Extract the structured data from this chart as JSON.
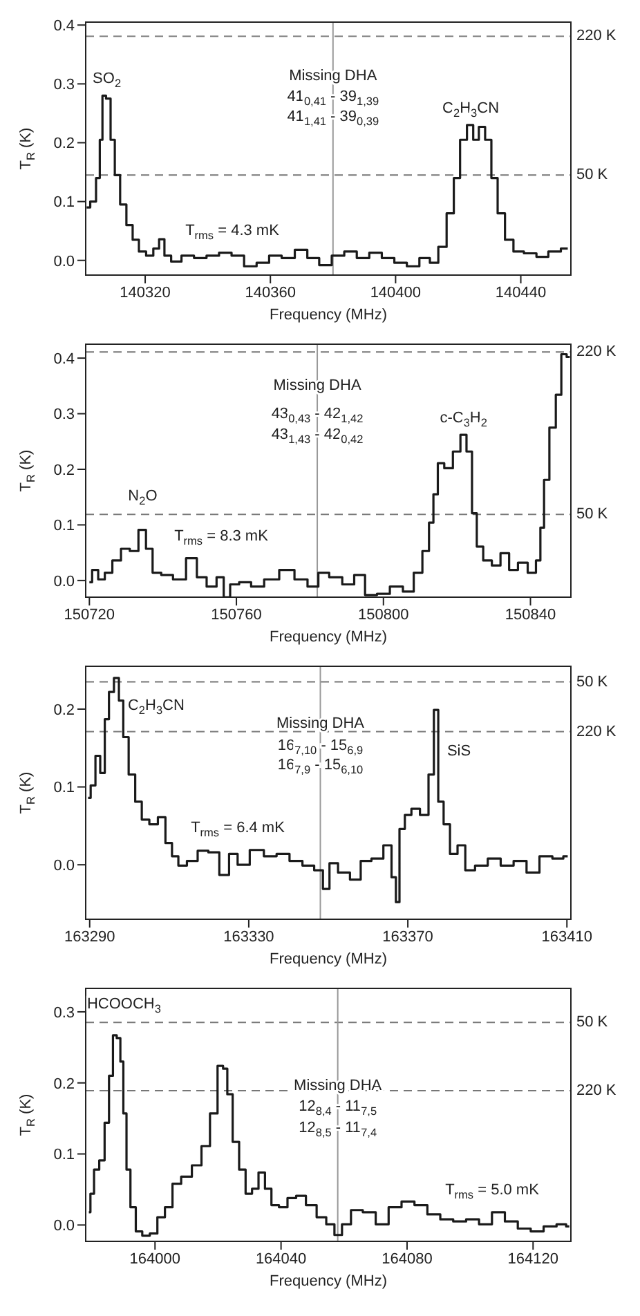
{
  "chart_data": [
    {
      "type": "step",
      "xlabel": "Frequency (MHz)",
      "ylabel": "T$_{R}$ (K)",
      "color": "#1a1a1a",
      "marker": "none",
      "xlim": [
        140301,
        140456
      ],
      "ylim": [
        -0.025,
        0.405
      ],
      "xticks": [
        140320,
        140360,
        140400,
        140440
      ],
      "yticks": [
        {
          "value": 0,
          "label": "0.0"
        },
        {
          "value": 0.1,
          "label": "0.1"
        },
        {
          "value": 0.2,
          "label": "0.2"
        },
        {
          "value": 0.3,
          "label": "0.3"
        },
        {
          "value": 0.4,
          "label": "0.4"
        }
      ],
      "x": [
        140301.3,
        140303.6,
        140305,
        140306,
        140306.7,
        140308.3,
        140309.6,
        140311,
        140313,
        140315,
        140317,
        140319,
        140321.6,
        140323.6,
        140325.3,
        140327,
        140329.6,
        140333.6,
        140337.6,
        140341.6,
        140345.6,
        140349.6,
        140353.6,
        140357.6,
        140361.6,
        140365.6,
        140370,
        140373.6,
        140377.6,
        140381.6,
        140385.6,
        140389.6,
        140393.6,
        140397.6,
        140401.6,
        140405.6,
        140409.6,
        140412.3,
        140415,
        140417.6,
        140419.6,
        140421.6,
        140424,
        140425.6,
        140427.6,
        140429.6,
        140431.6,
        140433.6,
        140436.3,
        140439,
        140443,
        140447,
        140450.6,
        140455
      ],
      "values": [
        0.09,
        0.1,
        0.14,
        0.205,
        0.28,
        0.275,
        0.205,
        0.145,
        0.095,
        0.06,
        0.035,
        0.015,
        0.008,
        0.02,
        0.036,
        0.008,
        -0.002,
        0.008,
        0.004,
        0.008,
        0.013,
        0.008,
        -0.01,
        -0.004,
        0.008,
        0.004,
        0.018,
        0.004,
        -0.008,
        0.008,
        0.015,
        0.004,
        0.013,
        0.004,
        -0.004,
        -0.01,
        0.004,
        -0.004,
        0.023,
        0.08,
        0.14,
        0.205,
        0.23,
        0.205,
        0.227,
        0.205,
        0.14,
        0.08,
        0.035,
        0.015,
        0.012,
        0.006,
        0.015,
        0.02
      ],
      "ref_lines": [
        {
          "axis": "y",
          "value": 0.381,
          "label": "220 K",
          "color": "#777777",
          "line_style": "dashed"
        },
        {
          "axis": "y",
          "value": 0.145,
          "label": "50 K",
          "color": "#777777",
          "line_style": "dashed"
        },
        {
          "axis": "x",
          "value": 140380,
          "color": "#999999"
        }
      ],
      "annotations": [
        {
          "text": "Missing DHA",
          "x": 140380,
          "y": 0.313
        },
        {
          "text": "41$_{0,41}$ - 39$_{1,39}$",
          "x": 140380,
          "y": 0.278
        },
        {
          "text": "41$_{1,41}$ - 39$_{0,39}$",
          "x": 140380,
          "y": 0.244
        },
        "T$_{rms}$ = 4.3 mK",
        {
          "text": "SO$_{2}$",
          "x": 140306.7,
          "y": 0.28
        },
        {
          "text": "C$_{2}$H$_{3}$CN",
          "x": 140424,
          "y": 0.23
        }
      ]
    },
    {
      "type": "step",
      "xlabel": "Frequency (MHz)",
      "ylabel": "T$_{R}$ (K)",
      "color": "#1a1a1a",
      "marker": "none",
      "xlim": [
        150719,
        150851
      ],
      "ylim": [
        -0.03,
        0.425
      ],
      "xticks": [
        150720,
        150760,
        150800,
        150840
      ],
      "yticks": [
        {
          "value": 0,
          "label": "0.0"
        },
        {
          "value": 0.1,
          "label": "0.1"
        },
        {
          "value": 0.2,
          "label": "0.2"
        },
        {
          "value": 0.3,
          "label": "0.3"
        },
        {
          "value": 0.4,
          "label": "0.4"
        }
      ],
      "x": [
        150720,
        150721.5,
        150723.3,
        150725.1,
        150727.4,
        150729.8,
        150732.2,
        150734.5,
        150736.3,
        150738.1,
        150741,
        150744.5,
        150748.1,
        150750.4,
        150753.4,
        150755.8,
        150757.3,
        150759.3,
        150762.2,
        150765.8,
        150769.3,
        150774,
        150777.6,
        150781.1,
        150783.5,
        150787,
        150790.6,
        150793.5,
        150796.5,
        150800,
        150803.5,
        150807.1,
        150809.4,
        150811.8,
        150813,
        150814.2,
        150815.4,
        150817.7,
        150820.1,
        150821.8,
        150823.4,
        150824.8,
        150826,
        150828.3,
        150830.7,
        150833,
        150835.4,
        150837.8,
        150840.7,
        150842.3,
        150843.1,
        150844.3,
        150846,
        150847.8,
        150849,
        150850.7
      ],
      "values": [
        -0.003,
        0.019,
        0.002,
        0.014,
        0.036,
        0.057,
        0.053,
        0.091,
        0.057,
        0.014,
        0.01,
        0.002,
        0.04,
        0.006,
        -0.011,
        0.006,
        -0.03,
        -0.007,
        -0.003,
        -0.011,
        0.002,
        0.019,
        0.002,
        -0.011,
        0.014,
        0.006,
        -0.007,
        0.01,
        -0.026,
        -0.024,
        -0.011,
        -0.02,
        0.014,
        0.053,
        0.104,
        0.155,
        0.211,
        0.202,
        0.232,
        0.262,
        0.232,
        0.121,
        0.061,
        0.036,
        0.027,
        0.049,
        0.019,
        0.032,
        0.014,
        0.036,
        0.095,
        0.181,
        0.275,
        0.334,
        0.407,
        0.402
      ],
      "ref_lines": [
        {
          "axis": "y",
          "value": 0.411,
          "label": "220 K",
          "color": "#777777",
          "line_style": "dashed"
        },
        {
          "axis": "y",
          "value": 0.119,
          "label": "50 K",
          "color": "#777777",
          "line_style": "dashed"
        },
        {
          "axis": "x",
          "value": 150782,
          "color": "#999999"
        }
      ],
      "annotations": [
        {
          "text": "Missing DHA",
          "x": 150782,
          "y": 0.351
        },
        {
          "text": "43$_{0,43}$ - 42$_{1,42}$",
          "x": 150782,
          "y": 0.3
        },
        {
          "text": "43$_{1,43}$ - 42$_{0,42}$",
          "x": 150782,
          "y": 0.262
        },
        "T$_{rms}$ = 8.3 mK",
        {
          "text": "N$_{2}$O",
          "x": 150734.5,
          "y": 0.091
        },
        {
          "text": "c-C$_{3}$H$_{2}$",
          "x": 150821.8,
          "y": 0.262
        }
      ]
    },
    {
      "type": "step",
      "xlabel": "Frequency (MHz)",
      "ylabel": "T$_{R}$ (K)",
      "color": "#1a1a1a",
      "marker": "none",
      "xlim": [
        163289,
        163411
      ],
      "ylim": [
        -0.07,
        0.255
      ],
      "xticks": [
        163290,
        163330,
        163370,
        163410
      ],
      "yticks": [
        {
          "value": 0,
          "label": "0.0"
        },
        {
          "value": 0.1,
          "label": "0.1"
        },
        {
          "value": 0.2,
          "label": "0.2"
        }
      ],
      "x": [
        163289.6,
        163290.9,
        163292,
        163293.3,
        163294.3,
        163295.4,
        163296.8,
        163297.9,
        163299,
        163300.6,
        163302.3,
        163303.9,
        163306.1,
        163308.2,
        163309.9,
        163311.5,
        163313.1,
        163315.8,
        163318.5,
        163321.2,
        163324,
        163326.1,
        163328.3,
        163332.2,
        163335.4,
        163338.6,
        163341.9,
        163345.1,
        163347.8,
        163349.5,
        163351.1,
        163353.8,
        163357.1,
        163359.2,
        163362.5,
        163365.2,
        163366.6,
        163367.4,
        163368.4,
        163370.1,
        163371.7,
        163374.4,
        163376,
        163377.1,
        163378.2,
        163379.8,
        163381.4,
        163383.6,
        163385.3,
        163388.5,
        163391.7,
        163395,
        163398.2,
        163401.5,
        163404.7,
        163408,
        163410.2
      ],
      "values": [
        0.086,
        0.102,
        0.14,
        0.118,
        0.187,
        0.222,
        0.24,
        0.211,
        0.164,
        0.116,
        0.081,
        0.058,
        0.052,
        0.061,
        0.028,
        0.011,
        -0.001,
        0.005,
        0.018,
        0.016,
        -0.013,
        0.014,
        0,
        0.019,
        0.011,
        0.014,
        0.005,
        -0.001,
        -0.007,
        -0.031,
        0.002,
        -0.01,
        -0.019,
        0.005,
        0.008,
        0.025,
        -0.016,
        -0.048,
        0.046,
        0.064,
        0.072,
        0.064,
        0.116,
        0.199,
        0.081,
        0.052,
        0.014,
        0.025,
        -0.007,
        -0.001,
        0.008,
        -0.001,
        0.005,
        -0.01,
        0.011,
        0.008,
        0.011
      ],
      "ref_lines": [
        {
          "axis": "y",
          "value": 0.235,
          "label": "50 K",
          "color": "#777777",
          "line_style": "dashed"
        },
        {
          "axis": "y",
          "value": 0.171,
          "label": "220 K",
          "color": "#777777",
          "line_style": "dashed"
        },
        {
          "axis": "x",
          "value": 163348,
          "color": "#999999"
        }
      ],
      "annotations": [
        {
          "text": "Missing DHA",
          "x": 163348,
          "y": 0.181
        },
        {
          "text": "16$_{7,10}$ - 15$_{6,9}$",
          "x": 163348,
          "y": 0.153
        },
        {
          "text": "16$_{7,9}$ - 15$_{6,10}$",
          "x": 163348,
          "y": 0.128
        },
        "T$_{rms}$ = 6.4 mK",
        {
          "text": "C$_{2}$H$_{3}$CN",
          "x": 163296.8,
          "y": 0.24
        },
        {
          "text": "SiS",
          "x": 163377.1,
          "y": 0.199
        }
      ]
    },
    {
      "type": "step",
      "xlabel": "Frequency (MHz)",
      "ylabel": "T$_{R}$ (K)",
      "color": "#1a1a1a",
      "marker": "none",
      "xlim": [
        163978,
        164132
      ],
      "ylim": [
        -0.023,
        0.333
      ],
      "xticks": [
        164000,
        164040,
        164080,
        164120
      ],
      "yticks": [
        {
          "value": 0,
          "label": "0.0"
        },
        {
          "value": 0.1,
          "label": "0.1"
        },
        {
          "value": 0.2,
          "label": "0.2"
        },
        {
          "value": 0.3,
          "label": "0.3"
        }
      ],
      "x": [
        163979,
        163980,
        163981.3,
        163983.3,
        163984.7,
        163986.1,
        163987.2,
        163988.5,
        163989.5,
        163990.4,
        163991.5,
        163992.9,
        163994.9,
        163997,
        163999.7,
        164001.8,
        164004.5,
        164006.6,
        164010,
        164013.4,
        164016.1,
        164018.8,
        164020.9,
        164022.3,
        164023.6,
        164025.7,
        164027.7,
        164029.8,
        164031.8,
        164033.9,
        164035.9,
        164038,
        164040.7,
        164043.4,
        164046.2,
        164049.6,
        164053,
        164055.7,
        164058.2,
        164060.5,
        164063.9,
        164068,
        164072.1,
        164076.2,
        164080.3,
        164084.4,
        164088.5,
        164092.6,
        164096.7,
        164100.8,
        164104.9,
        164109,
        164113.1,
        164117.2,
        164121.3,
        164125.4,
        164129.5,
        164131.5
      ],
      "values": [
        0.018,
        0.044,
        0.078,
        0.091,
        0.144,
        0.21,
        0.267,
        0.263,
        0.23,
        0.157,
        0.078,
        0.025,
        -0.009,
        -0.015,
        -0.012,
        0.011,
        0.025,
        0.058,
        0.068,
        0.084,
        0.111,
        0.157,
        0.224,
        0.22,
        0.184,
        0.117,
        0.078,
        0.044,
        0.051,
        0.074,
        0.051,
        0.028,
        0.025,
        0.038,
        0.041,
        0.028,
        0.011,
        0.001,
        -0.014,
        0.001,
        0.021,
        0.018,
        0.001,
        0.025,
        0.033,
        0.028,
        0.015,
        0.008,
        0.005,
        0.008,
        0.001,
        0.018,
        0.005,
        -0.005,
        -0.009,
        -0.002,
        0.001,
        -0.002
      ],
      "ref_lines": [
        {
          "axis": "y",
          "value": 0.285,
          "label": "50 K",
          "color": "#777777",
          "line_style": "dashed"
        },
        {
          "axis": "y",
          "value": 0.189,
          "label": "220 K",
          "color": "#777777",
          "line_style": "dashed"
        },
        {
          "axis": "x",
          "value": 164058,
          "color": "#999999"
        }
      ],
      "annotations": [
        {
          "text": "Missing DHA",
          "x": 164058,
          "y": 0.196
        },
        {
          "text": "12$_{8,4}$ - 11$_{7,5}$",
          "x": 164058,
          "y": 0.167
        },
        {
          "text": "12$_{8,5}$ - 11$_{7,4}$",
          "x": 164058,
          "y": 0.137
        },
        "T$_{rms}$ = 5.0 mK",
        {
          "text": "HCOOCH$_{3}$",
          "x": 163987.2,
          "y": 0.267
        }
      ]
    }
  ]
}
